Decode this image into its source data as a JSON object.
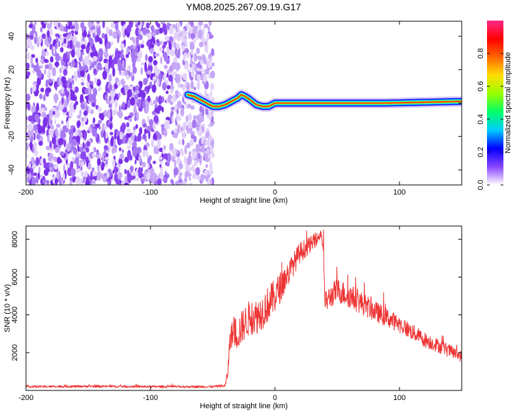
{
  "title": "YM08.2025.267.09.19.G17",
  "chart_data": [
    {
      "type": "heatmap",
      "name": "spectrogram",
      "xlabel": "Height of straight line (km)",
      "ylabel": "Frequency (Hz)",
      "xlim": [
        -200,
        150
      ],
      "ylim": [
        -49,
        49
      ],
      "xticks": [
        -200,
        -100,
        0,
        100
      ],
      "xtick_labels": [
        "-200",
        "-100",
        "0",
        "100"
      ],
      "yticks": [
        -40,
        -20,
        0,
        20,
        40
      ],
      "ytick_labels": [
        "-40",
        "-20",
        "0",
        "20",
        "40"
      ],
      "noise_region_x": [
        -200,
        -53
      ],
      "ridge": {
        "x": [
          -70,
          -65,
          -60,
          -55,
          -50,
          -45,
          -40,
          -35,
          -30,
          -27,
          -24,
          -20,
          -15,
          -10,
          -5,
          0,
          10,
          30,
          60,
          90,
          120,
          150
        ],
        "freq": [
          5,
          4,
          2,
          0,
          -2,
          -2,
          -1,
          1,
          3,
          5,
          4,
          2,
          -1,
          -2,
          -2,
          0,
          0,
          0,
          0,
          0,
          0.5,
          1
        ]
      },
      "colorbar": {
        "label": "Normalized spectral amplitude",
        "range": [
          0,
          1
        ],
        "ticks": [
          0.0,
          0.2,
          0.4,
          0.6,
          0.8
        ],
        "tick_labels": [
          "0.0",
          "0.2",
          "0.4",
          "0.6",
          "0.8"
        ],
        "colors": [
          "#ffffff",
          "#8844ff",
          "#0000ff",
          "#00ccff",
          "#00ff66",
          "#99ff00",
          "#ffdd00",
          "#ff6600",
          "#ff0000",
          "#ff2a8a"
        ]
      }
    },
    {
      "type": "line",
      "name": "snr",
      "xlabel": "Height of straight line (km)",
      "ylabel": "SNR (10 * v/v)",
      "xlim": [
        -200,
        150
      ],
      "ylim": [
        0,
        8700
      ],
      "xticks": [
        -200,
        -100,
        0,
        100
      ],
      "xtick_labels": [
        "-200",
        "-100",
        "0",
        "100"
      ],
      "yticks": [
        2000,
        4000,
        6000,
        8000
      ],
      "ytick_labels": [
        "2000",
        "4000",
        "6000",
        "8000"
      ],
      "color": "#ee3333",
      "series": [
        {
          "name": "SNR",
          "x": [
            -200,
            -150,
            -100,
            -50,
            -40,
            -38,
            -36,
            -33,
            -30,
            -25,
            -20,
            -15,
            -10,
            -5,
            0,
            10,
            20,
            30,
            35,
            37,
            39,
            40,
            42,
            50,
            60,
            80,
            100,
            120,
            140,
            150
          ],
          "y": [
            200,
            220,
            200,
            200,
            250,
            900,
            2800,
            3100,
            3000,
            3500,
            3900,
            3900,
            4200,
            4600,
            5000,
            6100,
            7300,
            7800,
            8100,
            8300,
            7500,
            4700,
            4800,
            5300,
            5000,
            4200,
            3500,
            2700,
            2100,
            1800
          ],
          "noise": [
            60,
            60,
            60,
            60,
            80,
            300,
            600,
            800,
            900,
            900,
            950,
            950,
            950,
            950,
            900,
            700,
            550,
            400,
            300,
            250,
            500,
            500,
            600,
            650,
            650,
            550,
            450,
            400,
            350,
            300
          ]
        }
      ]
    }
  ]
}
